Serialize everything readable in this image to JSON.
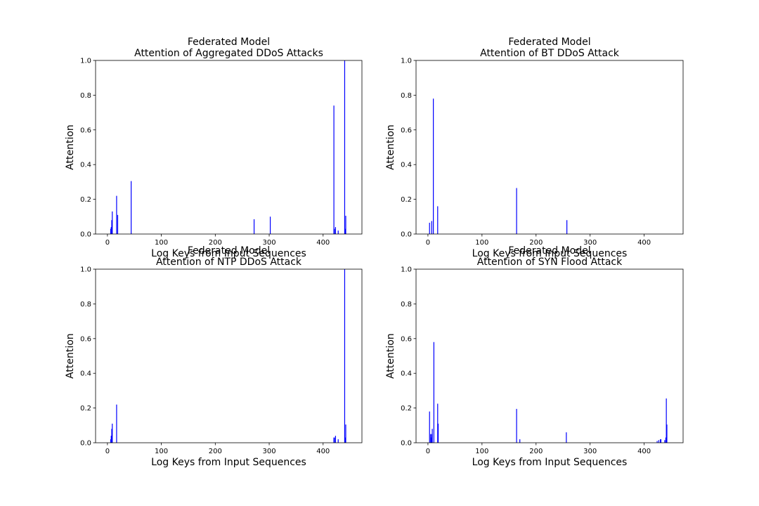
{
  "chart_data": [
    {
      "type": "bar",
      "title": "Federated Model",
      "subtitle": "Attention of Aggregated DDoS Attacks",
      "xlabel": "Log Keys from Input Sequences",
      "ylabel": "Attention",
      "xlim": [
        -22,
        472
      ],
      "ylim": [
        0,
        1
      ],
      "xticks": [
        "0",
        "100",
        "200",
        "300",
        "400"
      ],
      "yticks": [
        "0.0",
        "0.2",
        "0.4",
        "0.6",
        "0.8",
        "1.0"
      ],
      "grid": false,
      "bar_color": "#0000ff",
      "x": [
        6,
        7,
        8,
        9,
        17,
        19,
        44,
        272,
        302,
        420,
        421,
        423,
        428,
        440,
        441,
        442
      ],
      "values": [
        0.03,
        0.04,
        0.08,
        0.13,
        0.22,
        0.11,
        0.305,
        0.085,
        0.1,
        0.74,
        0.03,
        0.04,
        0.02,
        1.0,
        0.03,
        0.105
      ]
    },
    {
      "type": "bar",
      "title": "Federated Model",
      "subtitle": "Attention of BT DDoS Attack",
      "xlabel": "Log Keys from Input Sequences",
      "ylabel": "Attention",
      "xlim": [
        -22,
        472
      ],
      "ylim": [
        0,
        1
      ],
      "xticks": [
        "0",
        "100",
        "200",
        "300",
        "400"
      ],
      "yticks": [
        "0.0",
        "0.2",
        "0.4",
        "0.6",
        "0.8",
        "1.0"
      ],
      "grid": false,
      "bar_color": "#0000ff",
      "x": [
        3,
        7,
        10,
        18,
        164,
        257
      ],
      "values": [
        0.065,
        0.075,
        0.78,
        0.16,
        0.265,
        0.08
      ]
    },
    {
      "type": "bar",
      "title": "Federated Model",
      "subtitle": "Attention of NTP DDoS Attack",
      "xlabel": "Log Keys from Input Sequences",
      "ylabel": "Attention",
      "xlim": [
        -22,
        472
      ],
      "ylim": [
        0,
        1
      ],
      "xticks": [
        "0",
        "100",
        "200",
        "300",
        "400"
      ],
      "yticks": [
        "0.0",
        "0.2",
        "0.4",
        "0.6",
        "0.8",
        "1.0"
      ],
      "grid": false,
      "bar_color": "#0000ff",
      "x": [
        6,
        7,
        8,
        9,
        17,
        420,
        421,
        423,
        428,
        440,
        441,
        442
      ],
      "values": [
        0.02,
        0.04,
        0.08,
        0.11,
        0.22,
        0.03,
        0.03,
        0.04,
        0.02,
        1.0,
        0.03,
        0.105
      ]
    },
    {
      "type": "bar",
      "title": "Federated Model",
      "subtitle": "Attention of SYN Flood Attack",
      "xlabel": "Log Keys from Input Sequences",
      "ylabel": "Attention",
      "xlim": [
        -22,
        472
      ],
      "ylim": [
        0,
        1
      ],
      "xticks": [
        "0",
        "100",
        "200",
        "300",
        "400"
      ],
      "yticks": [
        "0.0",
        "0.2",
        "0.4",
        "0.6",
        "0.8",
        "1.0"
      ],
      "grid": false,
      "bar_color": "#0000ff",
      "x": [
        3,
        5,
        6,
        7,
        8,
        11,
        18,
        19,
        164,
        170,
        256,
        424,
        427,
        430,
        431,
        438,
        440,
        441,
        442
      ],
      "values": [
        0.18,
        0.05,
        0.03,
        0.05,
        0.08,
        0.58,
        0.225,
        0.11,
        0.195,
        0.02,
        0.06,
        0.01,
        0.015,
        0.02,
        0.02,
        0.015,
        0.03,
        0.255,
        0.105
      ]
    }
  ]
}
